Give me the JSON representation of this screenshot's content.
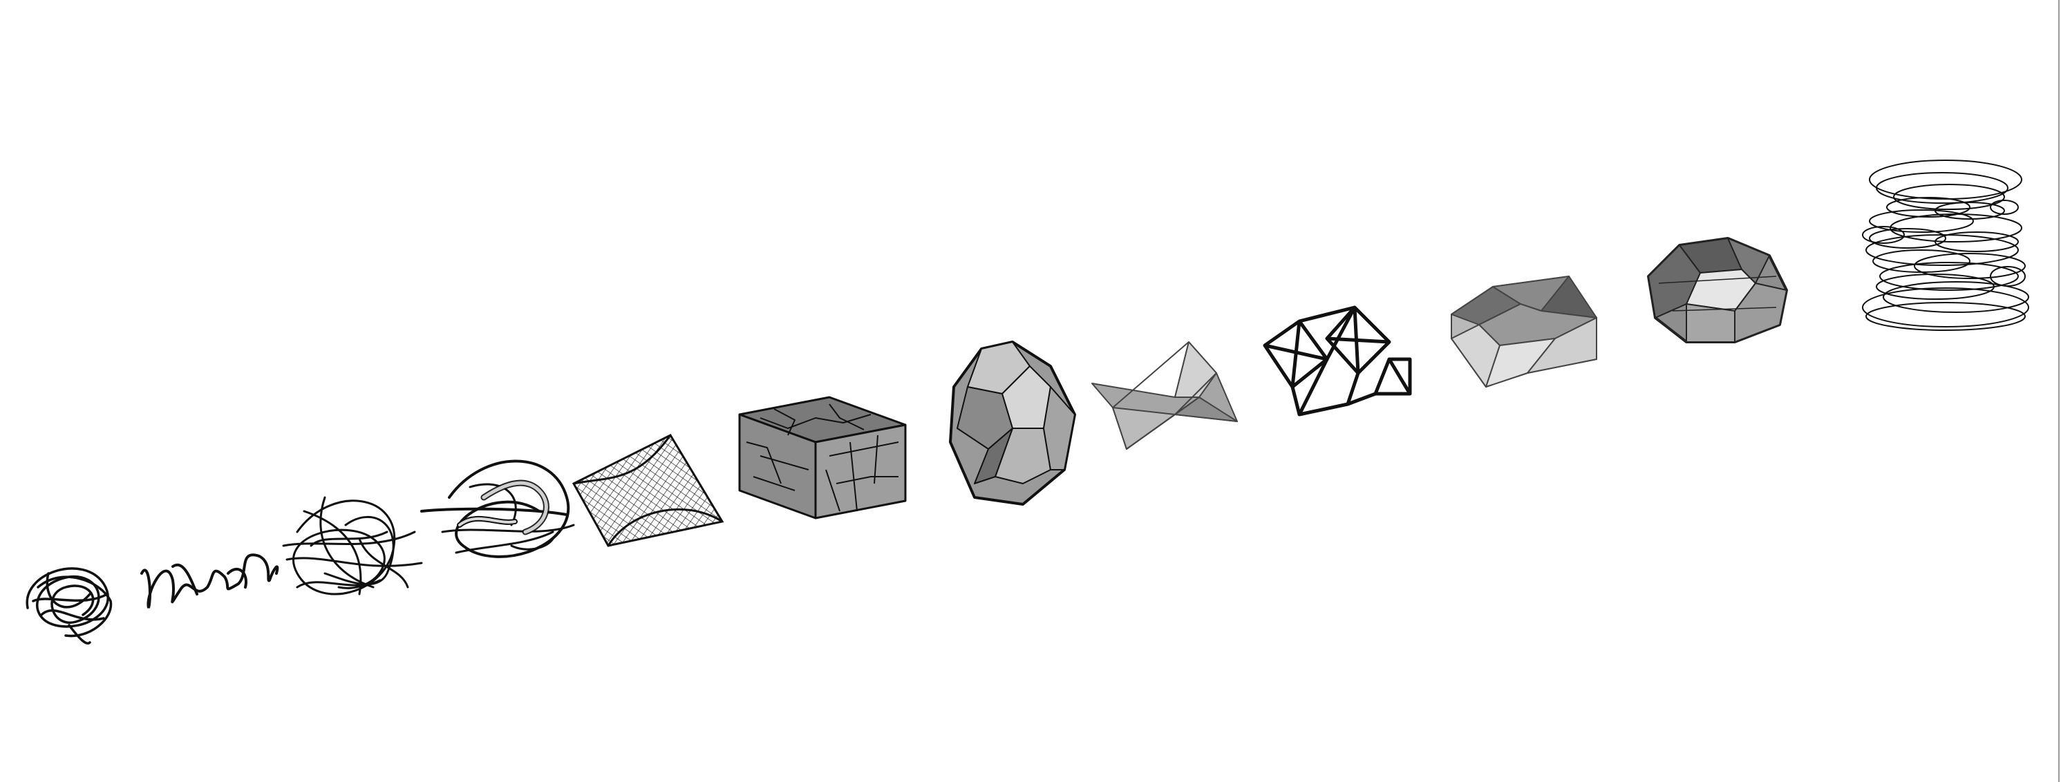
{
  "viewport": {
    "background": "#ffffff",
    "edge_color": "#9a9a9a"
  },
  "style": {
    "stroke": "#111111",
    "fill_light": "#d4d4d4",
    "fill_mid": "#a9a9a9",
    "fill_dark": "#6e6e6e",
    "fill_darker": "#4c4c4c"
  },
  "objects": [
    {
      "id": "curve-tangle-small",
      "icon": "scribble-icon"
    },
    {
      "id": "curve-squiggle",
      "icon": "squiggle-icon"
    },
    {
      "id": "curve-tangle-large",
      "icon": "scribble-icon"
    },
    {
      "id": "tube-tangle",
      "icon": "tube-icon"
    },
    {
      "id": "saddle-surface",
      "icon": "surface-icon"
    },
    {
      "id": "voronoi-box",
      "icon": "box-icon"
    },
    {
      "id": "faceted-polyhedron",
      "icon": "polyhedron-icon"
    },
    {
      "id": "spiky-mesh",
      "icon": "mesh-icon"
    },
    {
      "id": "wire-lattice",
      "icon": "lattice-icon"
    },
    {
      "id": "triangulated-slab",
      "icon": "slab-icon"
    },
    {
      "id": "faceted-blob",
      "icon": "blob-icon"
    },
    {
      "id": "contour-stack",
      "icon": "contour-icon"
    }
  ]
}
